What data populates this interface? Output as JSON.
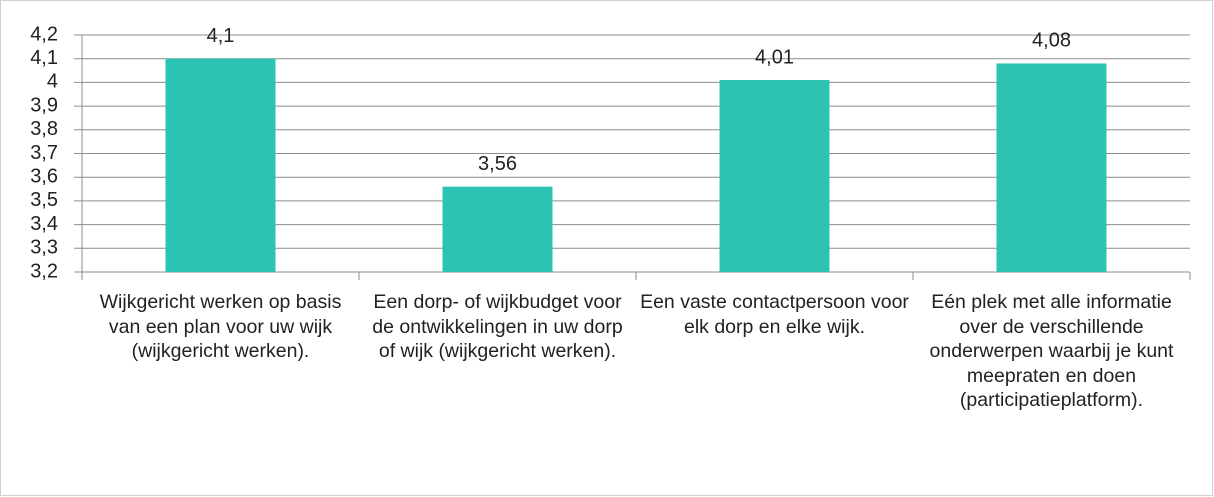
{
  "chart_data": {
    "type": "bar",
    "categories": [
      "Wijkgericht werken op basis van een plan voor uw wijk (wijkgericht werken).",
      "Een dorp- of wijkbudget voor de ontwikkelingen in uw dorp of wijk (wijkgericht werken).",
      "Een vaste contactpersoon voor elk dorp en elke wijk.",
      "Eén plek met alle informatie over de verschillende onderwerpen waarbij je kunt meepraten en doen (participatieplatform)."
    ],
    "values": [
      4.1,
      3.56,
      4.01,
      4.08
    ],
    "value_labels": [
      "4,1",
      "3,56",
      "4,01",
      "4,08"
    ],
    "color": "#2cc3b3",
    "ylim": [
      3.2,
      4.2
    ],
    "yticks": [
      {
        "value": 3.2,
        "label": "3,2"
      },
      {
        "value": 3.3,
        "label": "3,3"
      },
      {
        "value": 3.4,
        "label": "3,4"
      },
      {
        "value": 3.5,
        "label": "3,5"
      },
      {
        "value": 3.6,
        "label": "3,6"
      },
      {
        "value": 3.7,
        "label": "3,7"
      },
      {
        "value": 3.8,
        "label": "3,8"
      },
      {
        "value": 3.9,
        "label": "3,9"
      },
      {
        "value": 4,
        "label": "4"
      },
      {
        "value": 4.1,
        "label": "4,1"
      },
      {
        "value": 4.2,
        "label": "4,2"
      }
    ],
    "grid": true
  }
}
